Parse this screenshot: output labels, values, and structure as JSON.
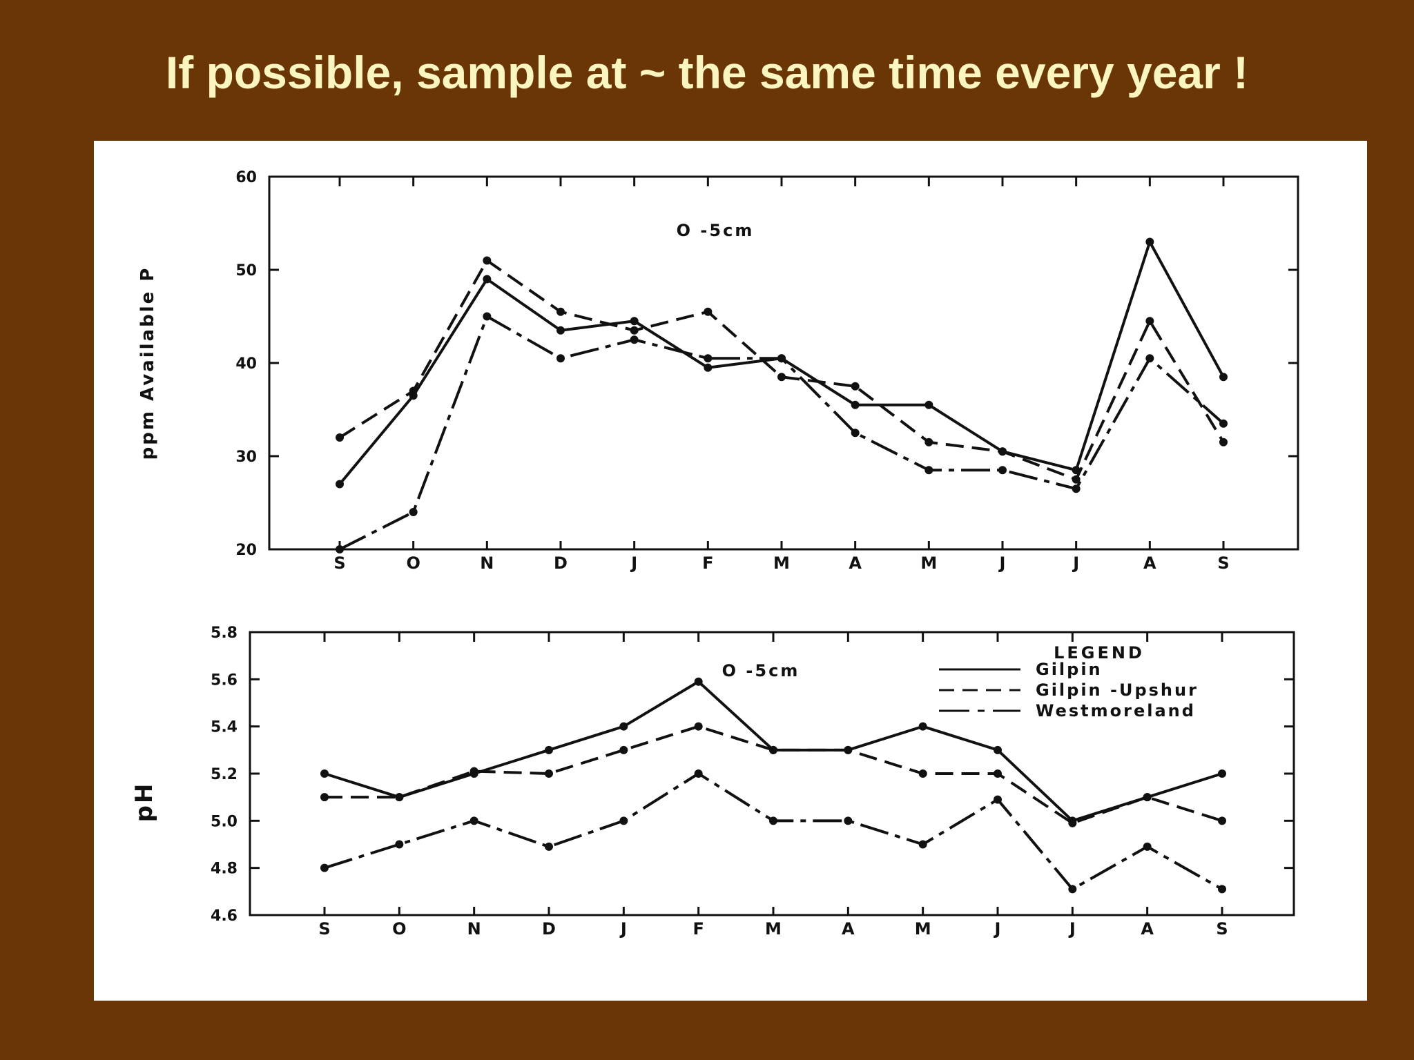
{
  "slide": {
    "title": "If possible, sample at ~ the same time every year !",
    "background_color": "#6a3606",
    "title_color": "#fbf5c0"
  },
  "chart_data": [
    {
      "type": "line",
      "annotation": "O -5cm",
      "xlabel": "",
      "ylabel": "ppm Available P",
      "categories": [
        "S",
        "O",
        "N",
        "D",
        "J",
        "F",
        "M",
        "A",
        "M",
        "J",
        "J",
        "A",
        "S"
      ],
      "ylim": [
        20,
        60
      ],
      "yticks": [
        "20",
        "30",
        "40",
        "50",
        "60"
      ],
      "grid": false,
      "series": [
        {
          "name": "Gilpin",
          "style": "solid",
          "values": [
            27,
            36.5,
            49,
            43.5,
            44.5,
            39.5,
            40.5,
            35.5,
            35.5,
            30.5,
            28.5,
            53,
            38.5
          ]
        },
        {
          "name": "Gilpin -Upshur",
          "style": "dashed",
          "values": [
            32,
            37,
            51,
            45.5,
            43.5,
            45.5,
            38.5,
            37.5,
            31.5,
            30.5,
            27.5,
            44.5,
            31.5
          ]
        },
        {
          "name": "Westmoreland",
          "style": "dash-dot",
          "values": [
            20,
            24,
            45,
            40.5,
            42.5,
            40.5,
            40.5,
            32.5,
            28.5,
            28.5,
            26.5,
            40.5,
            33.5
          ]
        }
      ]
    },
    {
      "type": "line",
      "annotation": "O -5cm",
      "xlabel": "",
      "ylabel": "pH",
      "categories": [
        "S",
        "O",
        "N",
        "D",
        "J",
        "F",
        "M",
        "A",
        "M",
        "J",
        "J",
        "A",
        "S"
      ],
      "ylim": [
        4.6,
        5.8
      ],
      "yticks": [
        "4.6",
        "4.8",
        "5.0",
        "5.2",
        "5.4",
        "5.6",
        "5.8"
      ],
      "grid": false,
      "legend": {
        "title": "LEGEND",
        "placement": "top-right",
        "entries": [
          {
            "label": "Gilpin",
            "style": "solid"
          },
          {
            "label": "Gilpin -Upshur",
            "style": "dashed"
          },
          {
            "label": "Westmoreland",
            "style": "dash-dot"
          }
        ]
      },
      "series": [
        {
          "name": "Gilpin",
          "style": "solid",
          "values": [
            5.2,
            5.1,
            5.2,
            5.3,
            5.4,
            5.59,
            5.3,
            5.3,
            5.4,
            5.3,
            5.0,
            5.1,
            5.2
          ]
        },
        {
          "name": "Gilpin -Upshur",
          "style": "dashed",
          "values": [
            5.1,
            5.1,
            5.21,
            5.2,
            5.3,
            5.4,
            5.3,
            5.3,
            5.2,
            5.2,
            4.99,
            5.1,
            5.0
          ]
        },
        {
          "name": "Westmoreland",
          "style": "dash-dot",
          "values": [
            4.8,
            4.9,
            5.0,
            4.89,
            5.0,
            5.2,
            5.0,
            5.0,
            4.9,
            5.09,
            4.71,
            4.89,
            4.71
          ]
        }
      ]
    }
  ]
}
